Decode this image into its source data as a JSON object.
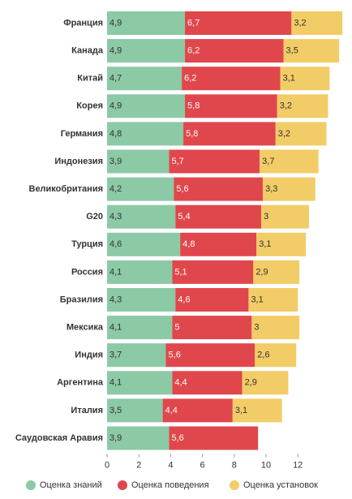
{
  "chart_data": {
    "type": "stacked-bar",
    "categories": [
      "Франция",
      "Канада",
      "Китай",
      "Корея",
      "Германия",
      "Индонезия",
      "Великобритания",
      "G20",
      "Турция",
      "Россия",
      "Бразилия",
      "Мексика",
      "Индия",
      "Аргентина",
      "Италия",
      "Саудовская Аравия"
    ],
    "series": [
      {
        "name": "Оценка знаний",
        "color": "#8cc9a5",
        "values": [
          4.9,
          4.9,
          4.7,
          4.9,
          4.8,
          3.9,
          4.2,
          4.3,
          4.6,
          4.1,
          4.3,
          4.1,
          3.7,
          4.1,
          3.5,
          3.9
        ],
        "value_labels": [
          "4,9",
          "4,9",
          "4,7",
          "4,9",
          "4,8",
          "3,9",
          "4,2",
          "4,3",
          "4,6",
          "4,1",
          "4,3",
          "4,1",
          "3,7",
          "4,1",
          "3,5",
          "3,9"
        ]
      },
      {
        "name": "Оценка поведения",
        "color": "#e0474c",
        "values": [
          6.7,
          6.2,
          6.2,
          5.8,
          5.8,
          5.7,
          5.6,
          5.4,
          4.8,
          5.1,
          4.6,
          5,
          5.6,
          4.4,
          4.4,
          5.6
        ],
        "value_labels": [
          "6,7",
          "6,2",
          "6,2",
          "5,8",
          "5,8",
          "5,7",
          "5,6",
          "5,4",
          "4,8",
          "5,1",
          "4,6",
          "5",
          "5,6",
          "4,4",
          "4,4",
          "5,6"
        ]
      },
      {
        "name": "Оценка установок",
        "color": "#f2cc66",
        "values": [
          3.2,
          3.5,
          3.1,
          3.2,
          3.2,
          3.7,
          3.3,
          3,
          3.1,
          2.9,
          3.1,
          3,
          2.6,
          2.9,
          3.1,
          null
        ],
        "value_labels": [
          "3,2",
          "3,5",
          "3,1",
          "3,2",
          "3,2",
          "3,7",
          "3,3",
          "3",
          "3,1",
          "2,9",
          "3,1",
          "3",
          "2,6",
          "2,9",
          "3,1",
          null
        ]
      }
    ],
    "xlim": [
      0,
      15
    ],
    "xticks": [
      0,
      2,
      4,
      6,
      8,
      10,
      12
    ],
    "legend": "bottom"
  }
}
